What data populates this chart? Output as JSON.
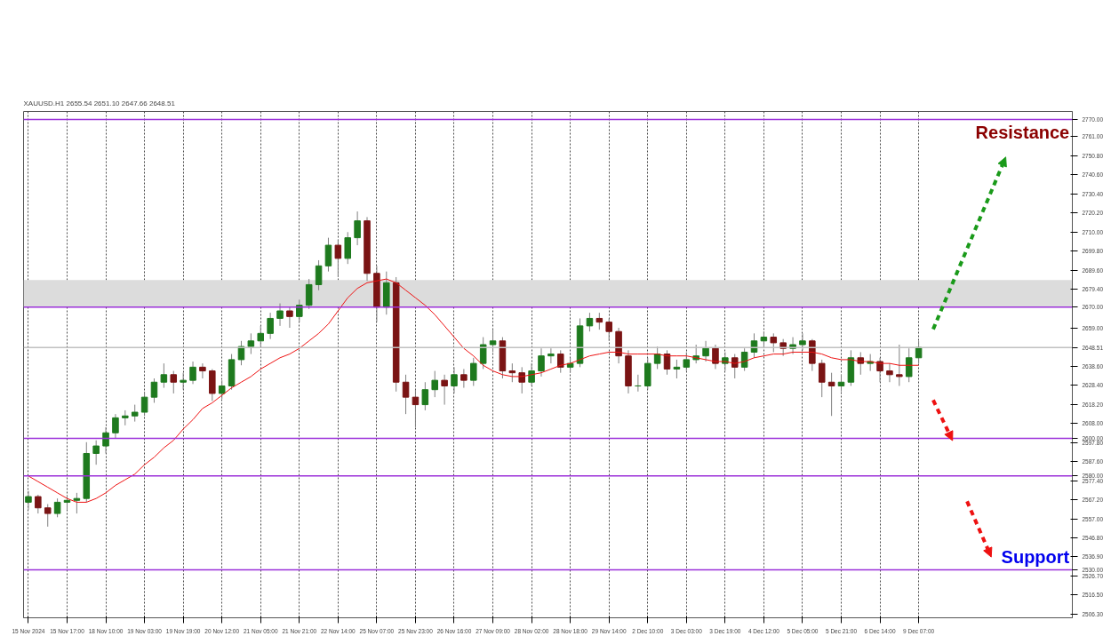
{
  "chart_data": {
    "type": "candlestick",
    "title": "XAUUSD.H1  2655.54 2651.10 2647.66 2648.51",
    "categories": [
      "15 Nov 2024",
      null,
      null,
      null,
      "15 Nov 17:00",
      null,
      null,
      null,
      "18 Nov 10:00",
      null,
      null,
      null,
      "19 Nov 03:00",
      null,
      null,
      null,
      "19 Nov 19:00",
      null,
      null,
      null,
      "20 Nov 12:00",
      null,
      null,
      null,
      "21 Nov 05:00",
      null,
      null,
      null,
      "21 Nov 21:00",
      null,
      null,
      null,
      "22 Nov 14:00",
      null,
      null,
      null,
      "25 Nov 07:00",
      null,
      null,
      null,
      "25 Nov 23:00",
      null,
      null,
      null,
      "26 Nov 16:00",
      null,
      null,
      null,
      "27 Nov 09:00",
      null,
      null,
      null,
      "28 Nov 02:00",
      null,
      null,
      null,
      "28 Nov 18:00",
      null,
      null,
      null,
      "29 Nov 14:00",
      null,
      null,
      null,
      "2 Dec 10:00",
      null,
      null,
      null,
      "3 Dec 03:00",
      null,
      null,
      null,
      "3 Dec 19:00",
      null,
      null,
      null,
      "4 Dec 12:00",
      null,
      null,
      null,
      "5 Dec 05:00",
      null,
      null,
      null,
      "5 Dec 21:00",
      null,
      null,
      null,
      "6 Dec 14:00",
      null,
      null,
      null,
      "9 Dec 07:00"
    ],
    "ohlc": [
      [
        2566,
        2572,
        2562,
        2569
      ],
      [
        2569,
        2570,
        2560,
        2563
      ],
      [
        2563,
        2565,
        2553,
        2560
      ],
      [
        2560,
        2568,
        2558,
        2566
      ],
      [
        2566,
        2570,
        2562,
        2567
      ],
      [
        2567,
        2571,
        2560,
        2568
      ],
      [
        2568,
        2598,
        2566,
        2592
      ],
      [
        2592,
        2599,
        2586,
        2596
      ],
      [
        2596,
        2606,
        2592,
        2603
      ],
      [
        2603,
        2613,
        2600,
        2611
      ],
      [
        2611,
        2615,
        2607,
        2612
      ],
      [
        2612,
        2618,
        2609,
        2614
      ],
      [
        2614,
        2625,
        2612,
        2622
      ],
      [
        2622,
        2632,
        2619,
        2630
      ],
      [
        2630,
        2640,
        2627,
        2634
      ],
      [
        2634,
        2636,
        2624,
        2630
      ],
      [
        2630,
        2635,
        2626,
        2631
      ],
      [
        2631,
        2641,
        2629,
        2638
      ],
      [
        2638,
        2640,
        2632,
        2636
      ],
      [
        2636,
        2637,
        2620,
        2624
      ],
      [
        2624,
        2631,
        2621,
        2628
      ],
      [
        2628,
        2645,
        2626,
        2642
      ],
      [
        2642,
        2652,
        2639,
        2649
      ],
      [
        2649,
        2656,
        2645,
        2652
      ],
      [
        2652,
        2660,
        2649,
        2656
      ],
      [
        2656,
        2667,
        2653,
        2664
      ],
      [
        2664,
        2672,
        2660,
        2668
      ],
      [
        2668,
        2670,
        2659,
        2665
      ],
      [
        2665,
        2674,
        2662,
        2671
      ],
      [
        2671,
        2685,
        2669,
        2682
      ],
      [
        2682,
        2695,
        2679,
        2692
      ],
      [
        2692,
        2707,
        2689,
        2703
      ],
      [
        2703,
        2706,
        2686,
        2696
      ],
      [
        2696,
        2710,
        2693,
        2707
      ],
      [
        2707,
        2721,
        2703,
        2716
      ],
      [
        2716,
        2718,
        2684,
        2688
      ],
      [
        2688,
        2692,
        2662,
        2670
      ],
      [
        2670,
        2689,
        2666,
        2683
      ],
      [
        2683,
        2686,
        2625,
        2630
      ],
      [
        2630,
        2634,
        2613,
        2622
      ],
      [
        2622,
        2626,
        2606,
        2618
      ],
      [
        2618,
        2630,
        2615,
        2626
      ],
      [
        2626,
        2636,
        2622,
        2631
      ],
      [
        2631,
        2634,
        2618,
        2628
      ],
      [
        2628,
        2638,
        2624,
        2634
      ],
      [
        2634,
        2637,
        2627,
        2631
      ],
      [
        2631,
        2643,
        2628,
        2640
      ],
      [
        2640,
        2654,
        2637,
        2650
      ],
      [
        2650,
        2658,
        2646,
        2652
      ],
      [
        2652,
        2654,
        2632,
        2636
      ],
      [
        2636,
        2640,
        2630,
        2635
      ],
      [
        2635,
        2638,
        2624,
        2630
      ],
      [
        2630,
        2640,
        2628,
        2636
      ],
      [
        2636,
        2648,
        2633,
        2644
      ],
      [
        2644,
        2648,
        2640,
        2645
      ],
      [
        2645,
        2647,
        2635,
        2638
      ],
      [
        2638,
        2643,
        2635,
        2640
      ],
      [
        2640,
        2664,
        2638,
        2660
      ],
      [
        2660,
        2667,
        2657,
        2664
      ],
      [
        2664,
        2667,
        2658,
        2662
      ],
      [
        2662,
        2664,
        2652,
        2657
      ],
      [
        2657,
        2659,
        2640,
        2644
      ],
      [
        2644,
        2647,
        2624,
        2628
      ],
      [
        2628,
        2634,
        2625,
        2628
      ],
      [
        2628,
        2643,
        2626,
        2640
      ],
      [
        2640,
        2649,
        2637,
        2645
      ],
      [
        2645,
        2647,
        2634,
        2637
      ],
      [
        2637,
        2642,
        2632,
        2638
      ],
      [
        2638,
        2646,
        2636,
        2642
      ],
      [
        2642,
        2650,
        2640,
        2644
      ],
      [
        2644,
        2652,
        2641,
        2648
      ],
      [
        2648,
        2650,
        2637,
        2640
      ],
      [
        2640,
        2646,
        2636,
        2643
      ],
      [
        2643,
        2645,
        2632,
        2638
      ],
      [
        2638,
        2648,
        2636,
        2646
      ],
      [
        2646,
        2656,
        2643,
        2652
      ],
      [
        2652,
        2657,
        2648,
        2654
      ],
      [
        2654,
        2656,
        2646,
        2651
      ],
      [
        2651,
        2653,
        2644,
        2648
      ],
      [
        2648,
        2654,
        2645,
        2650
      ],
      [
        2650,
        2656,
        2647,
        2652
      ],
      [
        2652,
        2653,
        2636,
        2640
      ],
      [
        2640,
        2642,
        2622,
        2630
      ],
      [
        2630,
        2635,
        2612,
        2628
      ],
      [
        2628,
        2634,
        2625,
        2630
      ],
      [
        2630,
        2647,
        2628,
        2643
      ],
      [
        2643,
        2646,
        2634,
        2640
      ],
      [
        2640,
        2645,
        2636,
        2641
      ],
      [
        2641,
        2643,
        2630,
        2636
      ],
      [
        2636,
        2640,
        2630,
        2634
      ],
      [
        2634,
        2650,
        2628,
        2633
      ],
      [
        2633,
        2648,
        2630,
        2643
      ],
      [
        2643,
        2652,
        2640,
        2648.51
      ]
    ],
    "series": [
      {
        "type": "line",
        "color": "#ee1111",
        "values": [
          2580,
          2577,
          2574,
          2571,
          2568,
          2566,
          2566,
          2568,
          2571,
          2575,
          2578,
          2581,
          2586,
          2590,
          2595,
          2599,
          2605,
          2610,
          2616,
          2619,
          2623,
          2627,
          2630,
          2633,
          2637,
          2640,
          2643,
          2645,
          2648,
          2652,
          2656,
          2661,
          2668,
          2675,
          2680,
          2683,
          2684,
          2685,
          2683,
          2679,
          2675,
          2671,
          2666,
          2660,
          2654,
          2648,
          2644,
          2639,
          2636,
          2634,
          2633,
          2633,
          2634,
          2635,
          2637,
          2639,
          2640,
          2642,
          2644,
          2645,
          2646,
          2646,
          2645,
          2645,
          2645,
          2645,
          2644,
          2644,
          2644,
          2643,
          2642,
          2641,
          2641,
          2640,
          2641,
          2643,
          2644,
          2645,
          2645,
          2646,
          2646,
          2646,
          2645,
          2643,
          2642,
          2642,
          2641,
          2641,
          2640,
          2640,
          2639,
          2639,
          2639
        ]
      }
    ],
    "ylim": [
      2504.4,
      2774.3
    ],
    "yticks": [
      {
        "value": 2770,
        "label": "2770.00"
      },
      {
        "value": 2761,
        "label": "2761.00"
      },
      {
        "value": 2750.8,
        "label": "2750.80"
      },
      {
        "value": 2740.6,
        "label": "2740.60"
      },
      {
        "value": 2730.4,
        "label": "2730.40"
      },
      {
        "value": 2720.2,
        "label": "2720.20"
      },
      {
        "value": 2710,
        "label": "2710.00"
      },
      {
        "value": 2699.8,
        "label": "2699.80"
      },
      {
        "value": 2689.6,
        "label": "2689.60"
      },
      {
        "value": 2679.4,
        "label": "2679.40"
      },
      {
        "value": 2670,
        "label": "2670.00"
      },
      {
        "value": 2659,
        "label": "2659.00"
      },
      2648.51,
      {
        "value": 2638.6,
        "label": "2638.60"
      },
      {
        "value": 2628.4,
        "label": "2628.40"
      },
      {
        "value": 2618.2,
        "label": "2618.20"
      },
      {
        "value": 2608,
        "label": "2608.00"
      },
      {
        "value": 2600,
        "label": "2600.00"
      },
      {
        "value": 2597.8,
        "label": "2597.80"
      },
      {
        "value": 2587.6,
        "label": "2587.60"
      },
      {
        "value": 2580,
        "label": "2580.00"
      },
      {
        "value": 2577.4,
        "label": "2577.40"
      },
      {
        "value": 2567.2,
        "label": "2567.20"
      },
      {
        "value": 2557,
        "label": "2557.00"
      },
      {
        "value": 2546.8,
        "label": "2546.80"
      },
      {
        "value": 2536.9,
        "label": "2536.90"
      },
      {
        "value": 2530,
        "label": "2530.00"
      },
      {
        "value": 2526.7,
        "label": "2526.70"
      },
      {
        "value": 2516.5,
        "label": "2516.50"
      },
      {
        "value": 2506.3,
        "label": "2506.30"
      }
    ],
    "grid": "x",
    "ref_lines": [
      {
        "axis": "y",
        "value": 2770,
        "color": "#9b30d9"
      },
      {
        "axis": "y",
        "value": 2670,
        "color": "#9b30d9"
      },
      {
        "axis": "y",
        "value": 2600,
        "color": "#9b30d9"
      },
      {
        "axis": "y",
        "value": 2580,
        "color": "#9b30d9"
      },
      {
        "axis": "y",
        "value": 2530,
        "color": "#9b30d9"
      },
      {
        "axis": "y",
        "value": 2648.51,
        "color": "#c0c0c0"
      }
    ],
    "bands": [
      {
        "axis": "y",
        "from": 2670,
        "to": 2684.5,
        "color": "#dcdcdc"
      }
    ],
    "annotations": [
      {
        "text": "Resistance",
        "y": 2770
      },
      {
        "text": "Support",
        "y": 2530
      }
    ]
  }
}
